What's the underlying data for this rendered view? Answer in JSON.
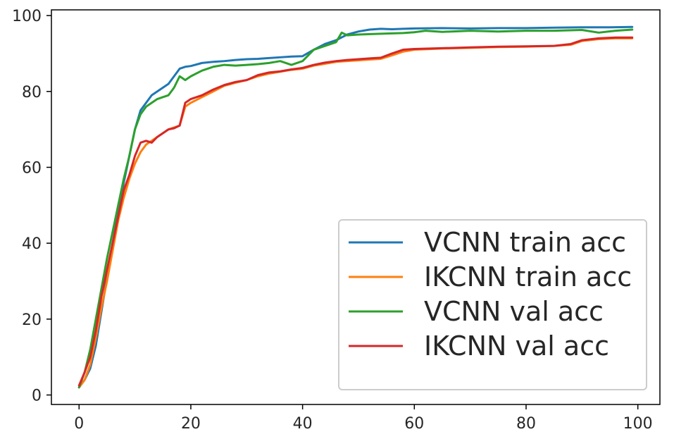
{
  "chart_data": {
    "type": "line",
    "title": "",
    "xlabel": "",
    "ylabel": "",
    "xlim": [
      -4.95,
      103.95
    ],
    "ylim": [
      -2.5,
      101.5
    ],
    "x_ticks": [
      0,
      20,
      40,
      60,
      80,
      100
    ],
    "y_ticks": [
      0,
      20,
      40,
      60,
      80,
      100
    ],
    "grid": false,
    "legend_position": "lower right",
    "series": [
      {
        "name": "VCNN train acc",
        "color": "#1f77b4",
        "points": [
          [
            0,
            2
          ],
          [
            1,
            4
          ],
          [
            2,
            7
          ],
          [
            3,
            13
          ],
          [
            4,
            22
          ],
          [
            5,
            31
          ],
          [
            6,
            40
          ],
          [
            7,
            48
          ],
          [
            8,
            56
          ],
          [
            9,
            63
          ],
          [
            10,
            70
          ],
          [
            11,
            75
          ],
          [
            12,
            77
          ],
          [
            13,
            79
          ],
          [
            14,
            80
          ],
          [
            15,
            81
          ],
          [
            16,
            82
          ],
          [
            17,
            84
          ],
          [
            18,
            86
          ],
          [
            19,
            86.5
          ],
          [
            20,
            86.7
          ],
          [
            22,
            87.5
          ],
          [
            24,
            87.8
          ],
          [
            26,
            88
          ],
          [
            28,
            88.3
          ],
          [
            30,
            88.5
          ],
          [
            32,
            88.6
          ],
          [
            34,
            88.8
          ],
          [
            36,
            89
          ],
          [
            38,
            89.2
          ],
          [
            40,
            89.3
          ],
          [
            42,
            91
          ],
          [
            44,
            92.5
          ],
          [
            46,
            93.5
          ],
          [
            48,
            95
          ],
          [
            50,
            95.8
          ],
          [
            52,
            96.3
          ],
          [
            54,
            96.5
          ],
          [
            56,
            96.4
          ],
          [
            58,
            96.5
          ],
          [
            60,
            96.6
          ],
          [
            65,
            96.7
          ],
          [
            70,
            96.6
          ],
          [
            75,
            96.7
          ],
          [
            80,
            96.7
          ],
          [
            85,
            96.8
          ],
          [
            90,
            96.9
          ],
          [
            95,
            96.9
          ],
          [
            99,
            97
          ]
        ]
      },
      {
        "name": "IKCNN train acc",
        "color": "#ff7f0e",
        "points": [
          [
            0,
            2
          ],
          [
            1,
            4
          ],
          [
            2,
            8
          ],
          [
            3,
            15
          ],
          [
            4,
            23
          ],
          [
            5,
            30
          ],
          [
            6,
            38
          ],
          [
            7,
            46
          ],
          [
            8,
            52
          ],
          [
            9,
            57
          ],
          [
            10,
            61
          ],
          [
            11,
            64
          ],
          [
            12,
            66
          ],
          [
            13,
            67
          ],
          [
            14,
            68
          ],
          [
            15,
            69
          ],
          [
            16,
            70
          ],
          [
            17,
            70.5
          ],
          [
            18,
            71
          ],
          [
            19,
            76
          ],
          [
            20,
            77
          ],
          [
            22,
            78.5
          ],
          [
            24,
            80
          ],
          [
            26,
            81.5
          ],
          [
            28,
            82.3
          ],
          [
            30,
            83
          ],
          [
            32,
            84
          ],
          [
            34,
            84.7
          ],
          [
            36,
            85.2
          ],
          [
            38,
            85.7
          ],
          [
            40,
            86
          ],
          [
            42,
            86.8
          ],
          [
            44,
            87.3
          ],
          [
            46,
            87.8
          ],
          [
            48,
            88
          ],
          [
            50,
            88.2
          ],
          [
            52,
            88.4
          ],
          [
            54,
            88.6
          ],
          [
            56,
            89.5
          ],
          [
            58,
            90.5
          ],
          [
            60,
            91
          ],
          [
            65,
            91.3
          ],
          [
            70,
            91.5
          ],
          [
            75,
            91.7
          ],
          [
            80,
            91.8
          ],
          [
            85,
            92
          ],
          [
            88,
            92.3
          ],
          [
            90,
            93.3
          ],
          [
            93,
            93.8
          ],
          [
            96,
            94
          ],
          [
            99,
            94
          ]
        ]
      },
      {
        "name": "VCNN val acc",
        "color": "#2ca02c",
        "points": [
          [
            0,
            2
          ],
          [
            1,
            6
          ],
          [
            2,
            12
          ],
          [
            3,
            20
          ],
          [
            4,
            28
          ],
          [
            5,
            36
          ],
          [
            6,
            43
          ],
          [
            7,
            50
          ],
          [
            8,
            57
          ],
          [
            9,
            63
          ],
          [
            10,
            70
          ],
          [
            11,
            74
          ],
          [
            12,
            76
          ],
          [
            13,
            77
          ],
          [
            14,
            78
          ],
          [
            15,
            78.5
          ],
          [
            16,
            79
          ],
          [
            17,
            81
          ],
          [
            18,
            84
          ],
          [
            19,
            83
          ],
          [
            20,
            84
          ],
          [
            22,
            85.5
          ],
          [
            24,
            86.5
          ],
          [
            26,
            87
          ],
          [
            28,
            86.8
          ],
          [
            30,
            87
          ],
          [
            32,
            87.2
          ],
          [
            34,
            87.5
          ],
          [
            36,
            88
          ],
          [
            38,
            87
          ],
          [
            40,
            88
          ],
          [
            42,
            91
          ],
          [
            44,
            92
          ],
          [
            46,
            93
          ],
          [
            47,
            95.5
          ],
          [
            48,
            94.8
          ],
          [
            50,
            95
          ],
          [
            54,
            95.2
          ],
          [
            58,
            95.4
          ],
          [
            60,
            95.6
          ],
          [
            62,
            96
          ],
          [
            65,
            95.7
          ],
          [
            70,
            96
          ],
          [
            75,
            95.8
          ],
          [
            80,
            96
          ],
          [
            85,
            96
          ],
          [
            90,
            96.2
          ],
          [
            93,
            95.5
          ],
          [
            96,
            96
          ],
          [
            99,
            96.3
          ]
        ]
      },
      {
        "name": "IKCNN val acc",
        "color": "#d62728",
        "points": [
          [
            0,
            2.5
          ],
          [
            1,
            6
          ],
          [
            2,
            10
          ],
          [
            3,
            17
          ],
          [
            4,
            26
          ],
          [
            5,
            33
          ],
          [
            6,
            40
          ],
          [
            7,
            47
          ],
          [
            8,
            54
          ],
          [
            9,
            58
          ],
          [
            10,
            63
          ],
          [
            11,
            66.5
          ],
          [
            12,
            67
          ],
          [
            13,
            66.5
          ],
          [
            14,
            68
          ],
          [
            15,
            69
          ],
          [
            16,
            70
          ],
          [
            17,
            70.3
          ],
          [
            18,
            71
          ],
          [
            19,
            77
          ],
          [
            20,
            78
          ],
          [
            22,
            79
          ],
          [
            24,
            80.5
          ],
          [
            26,
            81.7
          ],
          [
            28,
            82.5
          ],
          [
            30,
            83
          ],
          [
            32,
            84.3
          ],
          [
            34,
            85
          ],
          [
            36,
            85.3
          ],
          [
            38,
            85.8
          ],
          [
            40,
            86.2
          ],
          [
            42,
            87
          ],
          [
            44,
            87.6
          ],
          [
            46,
            88
          ],
          [
            48,
            88.3
          ],
          [
            50,
            88.5
          ],
          [
            52,
            88.7
          ],
          [
            54,
            88.9
          ],
          [
            56,
            90
          ],
          [
            58,
            91
          ],
          [
            60,
            91.2
          ],
          [
            65,
            91.4
          ],
          [
            70,
            91.6
          ],
          [
            75,
            91.8
          ],
          [
            80,
            91.9
          ],
          [
            85,
            92
          ],
          [
            88,
            92.5
          ],
          [
            90,
            93.5
          ],
          [
            93,
            94
          ],
          [
            96,
            94.2
          ],
          [
            99,
            94.2
          ]
        ]
      }
    ]
  }
}
